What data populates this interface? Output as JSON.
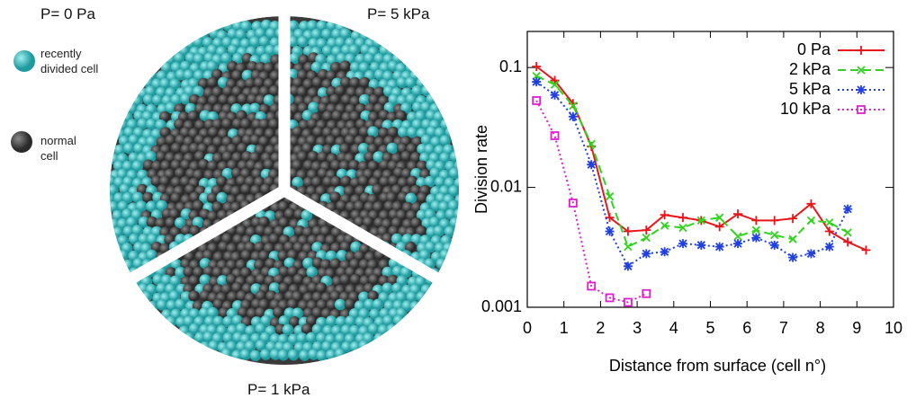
{
  "illustration": {
    "panels": [
      "P= 0 Pa",
      "P= 5 kPa",
      "P= 1 kPa"
    ],
    "legend": [
      "recently divided cell",
      "normal cell"
    ]
  },
  "chart_data": {
    "type": "line",
    "xlabel": "Distance from surface (cell n°)",
    "ylabel": "Division rate",
    "xlim": [
      0,
      10
    ],
    "xticks": [
      0,
      1,
      2,
      3,
      4,
      5,
      6,
      7,
      8,
      9,
      10
    ],
    "ylim": [
      0.001,
      0.2
    ],
    "yticks": [
      0.001,
      0.01,
      0.1
    ],
    "yscale": "log",
    "grid": false,
    "legend": "upper right",
    "series": [
      {
        "name": "0 Pa",
        "color": "#e8161b",
        "marker": "plus",
        "dash": "solid",
        "x": [
          0.25,
          0.75,
          1.25,
          1.75,
          2.25,
          2.75,
          3.25,
          3.75,
          4.25,
          4.75,
          5.25,
          5.75,
          6.25,
          6.75,
          7.25,
          7.75,
          8.25,
          8.75,
          9.25
        ],
        "values": [
          0.102,
          0.078,
          0.05,
          0.022,
          0.0056,
          0.0043,
          0.0044,
          0.0059,
          0.0056,
          0.0053,
          0.0047,
          0.006,
          0.0053,
          0.0053,
          0.0055,
          0.0073,
          0.0043,
          0.0035,
          0.003
        ]
      },
      {
        "name": "2 kPa",
        "color": "#2fd41c",
        "marker": "cross",
        "dash": "dashed",
        "x": [
          0.25,
          0.75,
          1.25,
          1.75,
          2.25,
          2.75,
          3.25,
          3.75,
          4.25,
          4.75,
          5.25,
          5.75,
          6.25,
          6.75,
          7.25,
          7.75,
          8.25,
          8.75
        ],
        "values": [
          0.085,
          0.072,
          0.048,
          0.023,
          0.0084,
          0.0032,
          0.0038,
          0.0048,
          0.0046,
          0.0053,
          0.0056,
          0.0039,
          0.0044,
          0.004,
          0.0037,
          0.0053,
          0.0051,
          0.0042
        ]
      },
      {
        "name": "5 kPa",
        "color": "#1f3fe0",
        "marker": "star",
        "dash": "dotted",
        "x": [
          0.25,
          0.75,
          1.25,
          1.75,
          2.25,
          2.75,
          3.25,
          3.75,
          4.25,
          4.75,
          5.25,
          5.75,
          6.25,
          6.75,
          7.25,
          7.75,
          8.25,
          8.75
        ],
        "values": [
          0.076,
          0.059,
          0.039,
          0.0155,
          0.0043,
          0.0022,
          0.0028,
          0.0029,
          0.0034,
          0.0033,
          0.0032,
          0.0034,
          0.0038,
          0.0033,
          0.0026,
          0.0028,
          0.0032,
          0.0066
        ]
      },
      {
        "name": "10 kPa",
        "color": "#e020d0",
        "marker": "square",
        "dash": "dotted",
        "x": [
          0.25,
          0.75,
          1.25,
          1.75,
          2.25,
          2.75,
          3.25
        ],
        "values": [
          0.053,
          0.027,
          0.0074,
          0.0015,
          0.0012,
          0.0011,
          0.0013
        ]
      }
    ]
  }
}
